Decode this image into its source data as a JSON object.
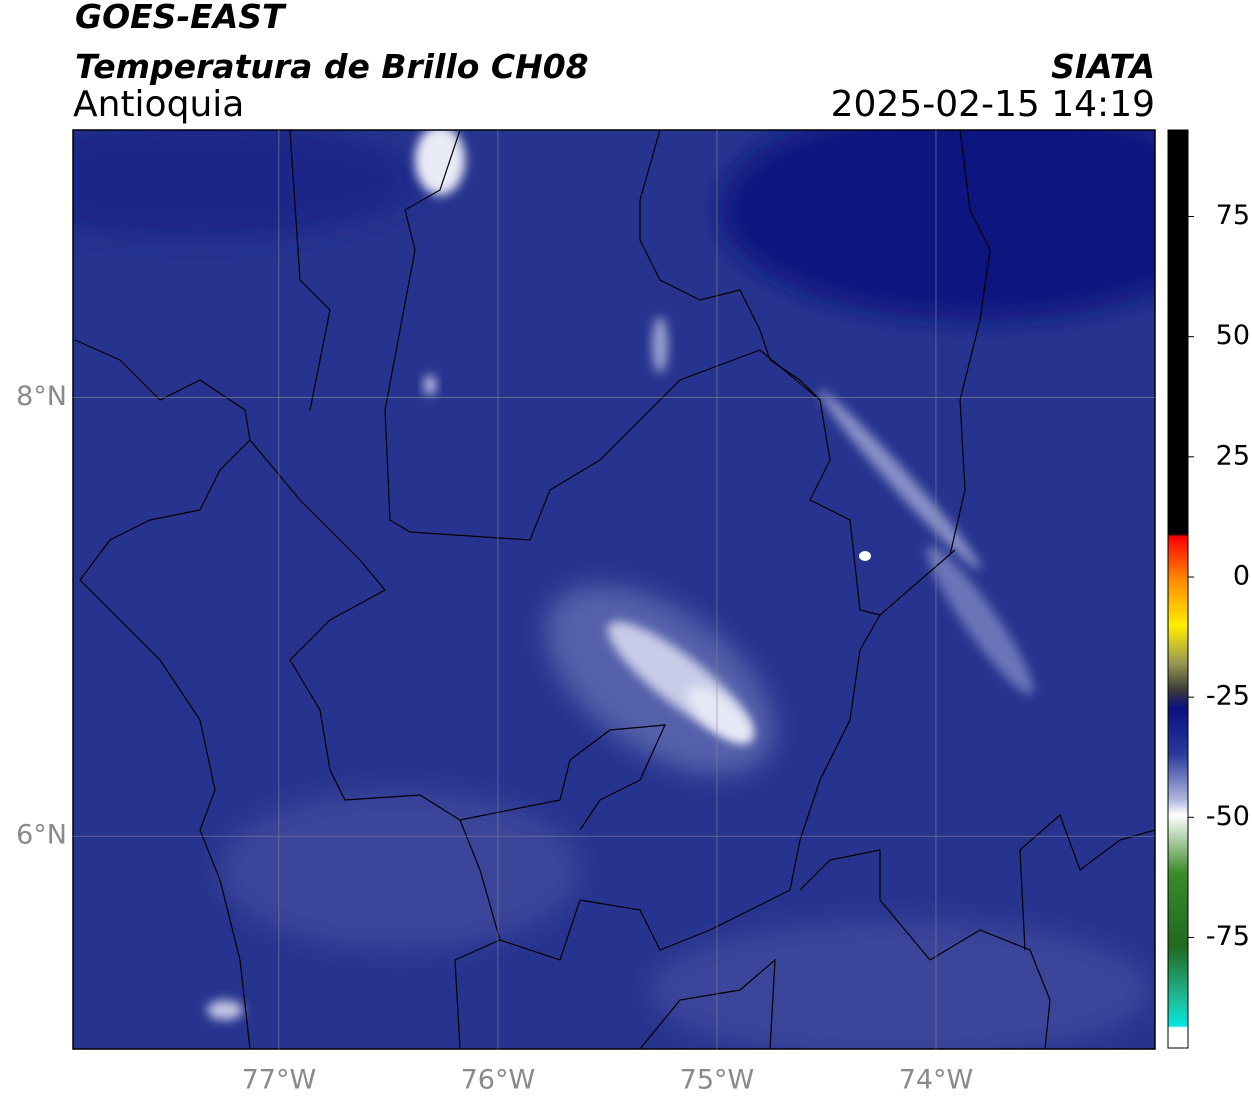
{
  "header": {
    "satellite": "GOES-EAST",
    "product": "Temperatura de Brillo CH08",
    "region": "Antioquia",
    "source": "SIATA",
    "datetime": "2025-02-15 14:19"
  },
  "map": {
    "xlim": [
      -77.94,
      -73.0
    ],
    "ylim": [
      5.03,
      9.22
    ],
    "xticks": [
      {
        "value": -77,
        "label": "77°W"
      },
      {
        "value": -76,
        "label": "76°W"
      },
      {
        "value": -75,
        "label": "75°W"
      },
      {
        "value": -74,
        "label": "74°W"
      }
    ],
    "yticks": [
      {
        "value": 8,
        "label": "8°N"
      },
      {
        "value": 6,
        "label": "6°N"
      }
    ],
    "grid": true
  },
  "colorbar": {
    "lim": [
      -98,
      93
    ],
    "ticks": [
      75,
      50,
      25,
      0,
      -25,
      -50,
      -75
    ]
  }
}
